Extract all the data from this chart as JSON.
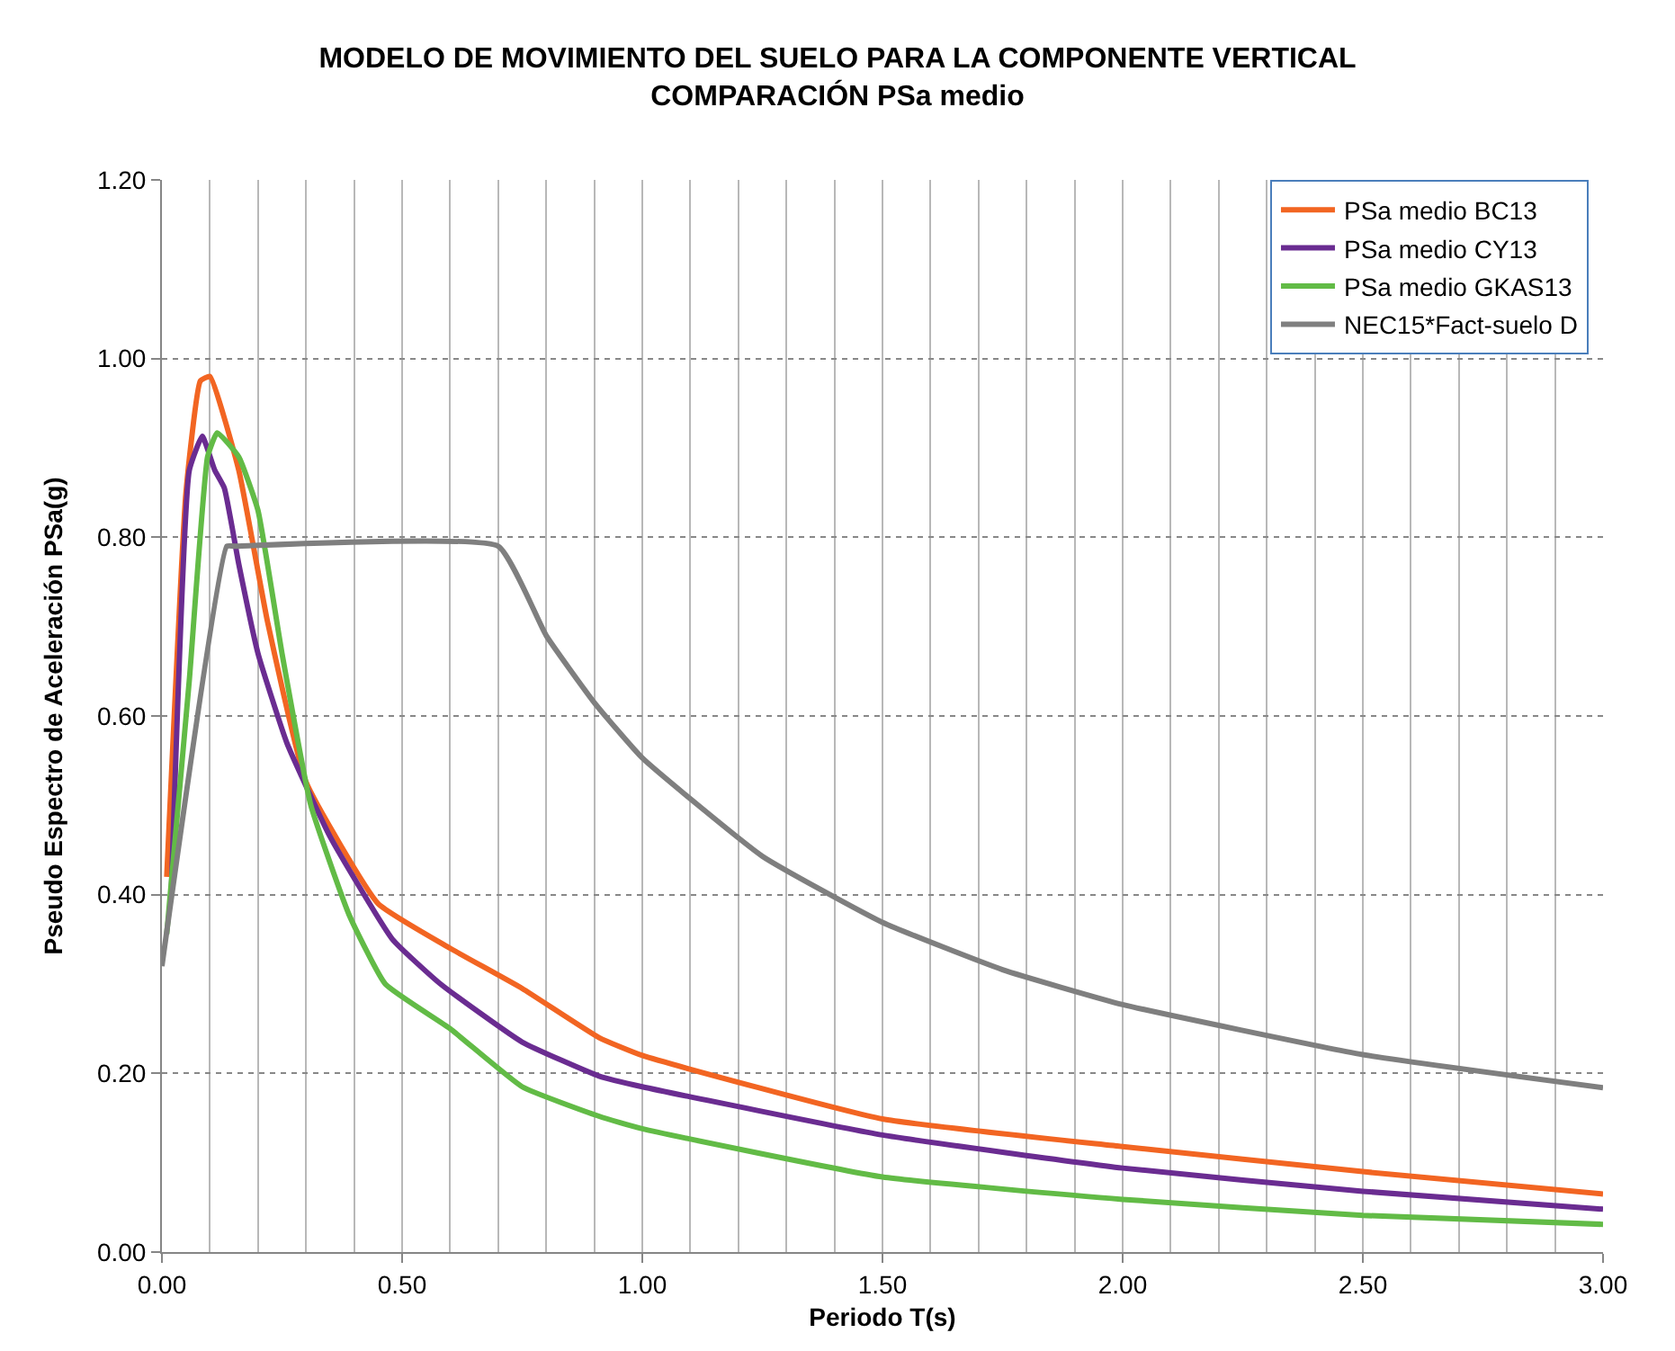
{
  "chart_data": {
    "type": "line",
    "title": "MODELO DE MOVIMIENTO DEL SUELO PARA LA COMPONENTE VERTICAL\nCOMPARACIÓN PSa medio",
    "xlabel": "Periodo T(s)",
    "ylabel": "Pseudo Espectro de Aceleración PSa(g)",
    "xlim": [
      0,
      3
    ],
    "xticks": [
      {
        "value": 0,
        "label": "0.00"
      },
      {
        "value": 0.5,
        "label": "0.50"
      },
      {
        "value": 1,
        "label": "1.00"
      },
      {
        "value": 1.5,
        "label": "1.50"
      },
      {
        "value": 2,
        "label": "2.00"
      },
      {
        "value": 2.5,
        "label": "2.50"
      },
      {
        "value": 3,
        "label": "3.00"
      }
    ],
    "ylim": [
      0,
      1.2
    ],
    "yticks": [
      {
        "value": 0,
        "label": "0.00"
      },
      {
        "value": 0.2,
        "label": "0.20"
      },
      {
        "value": 0.4,
        "label": "0.40"
      },
      {
        "value": 0.6,
        "label": "0.60"
      },
      {
        "value": 0.8,
        "label": "0.80"
      },
      {
        "value": 1.0,
        "label": "1.00"
      },
      {
        "value": 1.2,
        "label": "1.20"
      }
    ],
    "grid": true,
    "legend": "top right",
    "marker": "none",
    "line_style": "solid",
    "series": [
      {
        "name": "PSa medio BC13",
        "color": "#f26522",
        "x": [
          0.01,
          0.05,
          0.08,
          0.1,
          0.16,
          0.22,
          0.3,
          0.45,
          0.6,
          0.75,
          0.91,
          1.0,
          1.5,
          2.0,
          2.5,
          3.0
        ],
        "values": [
          0.42,
          0.85,
          0.975,
          0.98,
          0.875,
          0.705,
          0.526,
          0.39,
          0.34,
          0.295,
          0.24,
          0.22,
          0.149,
          0.118,
          0.09,
          0.065
        ]
      },
      {
        "name": "PSa medio CY13",
        "color": "#6a2c91",
        "x": [
          0.02,
          0.057,
          0.084,
          0.11,
          0.13,
          0.16,
          0.2,
          0.26,
          0.35,
          0.48,
          0.58,
          0.75,
          0.91,
          1.0,
          1.5,
          2.0,
          2.5,
          3.0
        ],
        "values": [
          0.41,
          0.875,
          0.913,
          0.875,
          0.855,
          0.77,
          0.67,
          0.57,
          0.465,
          0.35,
          0.3,
          0.235,
          0.197,
          0.185,
          0.131,
          0.094,
          0.068,
          0.048
        ]
      },
      {
        "name": "PSa medio GKAS13",
        "color": "#62bb46",
        "x": [
          0.01,
          0.057,
          0.095,
          0.115,
          0.16,
          0.2,
          0.25,
          0.31,
          0.39,
          0.465,
          0.6,
          0.75,
          0.91,
          1.0,
          1.5,
          2.0,
          2.5,
          3.0
        ],
        "values": [
          0.356,
          0.64,
          0.89,
          0.917,
          0.89,
          0.83,
          0.67,
          0.5,
          0.377,
          0.3,
          0.25,
          0.185,
          0.152,
          0.138,
          0.084,
          0.059,
          0.041,
          0.031
        ]
      },
      {
        "name": "NEC15*Fact-suelo D",
        "color": "#7f7f7f",
        "x": [
          0.0,
          0.135,
          0.15,
          0.7,
          0.8,
          0.9,
          1.0,
          1.25,
          1.5,
          1.75,
          2.0,
          2.5,
          3.0
        ],
        "values": [
          0.32,
          0.79,
          0.79,
          0.79,
          0.69,
          0.615,
          0.553,
          0.443,
          0.369,
          0.316,
          0.277,
          0.221,
          0.184
        ]
      }
    ]
  }
}
